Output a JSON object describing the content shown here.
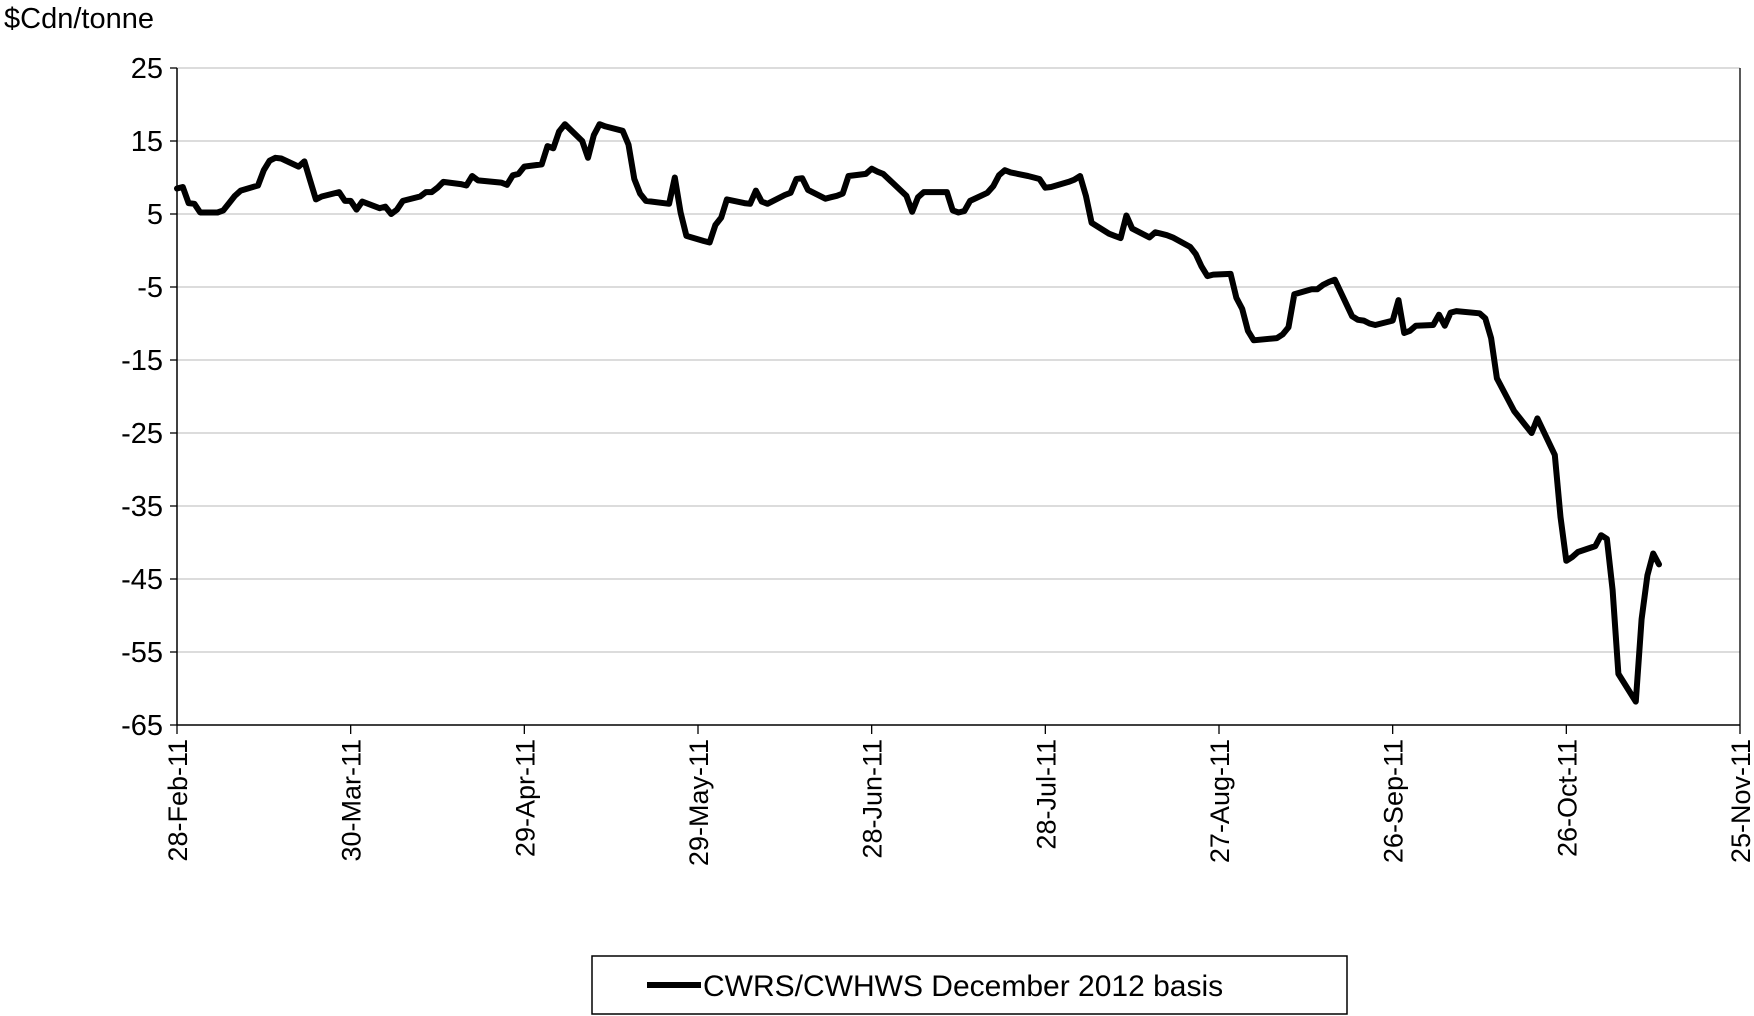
{
  "chart_data": {
    "type": "line",
    "title": "",
    "ylabel": "$Cdn/tonne",
    "xlabel": "",
    "ylim": [
      -65,
      25
    ],
    "yticks": [
      25,
      15,
      5,
      -5,
      -15,
      -25,
      -35,
      -45,
      -55,
      -65
    ],
    "x_start": "28-Feb-11",
    "x_end": "25-Nov-11",
    "xticks": [
      "28-Feb-11",
      "30-Mar-11",
      "29-Apr-11",
      "29-May-11",
      "28-Jun-11",
      "28-Jul-11",
      "27-Aug-11",
      "26-Sep-11",
      "26-Oct-11",
      "25-Nov-11"
    ],
    "grid": "horizontal",
    "legend_position": "bottom",
    "series": [
      {
        "name": "CWRS/CWHWS December 2012 basis",
        "color": "#000000",
        "points": [
          [
            "28-Feb-11",
            8.5
          ],
          [
            "01-Mar-11",
            8.7
          ],
          [
            "02-Mar-11",
            6.5
          ],
          [
            "03-Mar-11",
            6.4
          ],
          [
            "04-Mar-11",
            5.2
          ],
          [
            "07-Mar-11",
            5.2
          ],
          [
            "08-Mar-11",
            5.5
          ],
          [
            "09-Mar-11",
            6.5
          ],
          [
            "10-Mar-11",
            7.5
          ],
          [
            "11-Mar-11",
            8.2
          ],
          [
            "14-Mar-11",
            8.9
          ],
          [
            "15-Mar-11",
            11.0
          ],
          [
            "16-Mar-11",
            12.3
          ],
          [
            "17-Mar-11",
            12.7
          ],
          [
            "18-Mar-11",
            12.6
          ],
          [
            "21-Mar-11",
            11.5
          ],
          [
            "22-Mar-11",
            12.2
          ],
          [
            "23-Mar-11",
            9.6
          ],
          [
            "24-Mar-11",
            7.0
          ],
          [
            "25-Mar-11",
            7.4
          ],
          [
            "28-Mar-11",
            8.0
          ],
          [
            "29-Mar-11",
            6.8
          ],
          [
            "30-Mar-11",
            6.8
          ],
          [
            "31-Mar-11",
            5.6
          ],
          [
            "01-Apr-11",
            6.7
          ],
          [
            "04-Apr-11",
            5.8
          ],
          [
            "05-Apr-11",
            6.0
          ],
          [
            "06-Apr-11",
            5.0
          ],
          [
            "07-Apr-11",
            5.6
          ],
          [
            "08-Apr-11",
            6.8
          ],
          [
            "11-Apr-11",
            7.4
          ],
          [
            "12-Apr-11",
            8.0
          ],
          [
            "13-Apr-11",
            8.0
          ],
          [
            "14-Apr-11",
            8.6
          ],
          [
            "15-Apr-11",
            9.4
          ],
          [
            "18-Apr-11",
            9.1
          ],
          [
            "19-Apr-11",
            8.9
          ],
          [
            "20-Apr-11",
            10.2
          ],
          [
            "21-Apr-11",
            9.6
          ],
          [
            "25-Apr-11",
            9.3
          ],
          [
            "26-Apr-11",
            9.0
          ],
          [
            "27-Apr-11",
            10.3
          ],
          [
            "28-Apr-11",
            10.5
          ],
          [
            "29-Apr-11",
            11.5
          ],
          [
            "02-May-11",
            11.8
          ],
          [
            "03-May-11",
            14.3
          ],
          [
            "04-May-11",
            14.0
          ],
          [
            "05-May-11",
            16.3
          ],
          [
            "06-May-11",
            17.3
          ],
          [
            "09-May-11",
            15.0
          ],
          [
            "10-May-11",
            12.7
          ],
          [
            "11-May-11",
            15.8
          ],
          [
            "12-May-11",
            17.3
          ],
          [
            "13-May-11",
            17.0
          ],
          [
            "16-May-11",
            16.4
          ],
          [
            "17-May-11",
            14.5
          ],
          [
            "18-May-11",
            9.8
          ],
          [
            "19-May-11",
            7.8
          ],
          [
            "20-May-11",
            6.8
          ],
          [
            "24-May-11",
            6.4
          ],
          [
            "25-May-11",
            10.0
          ],
          [
            "26-May-11",
            5.2
          ],
          [
            "27-May-11",
            2.0
          ],
          [
            "30-May-11",
            1.3
          ],
          [
            "31-May-11",
            1.1
          ],
          [
            "01-Jun-11",
            3.5
          ],
          [
            "02-Jun-11",
            4.5
          ],
          [
            "03-Jun-11",
            7.0
          ],
          [
            "06-Jun-11",
            6.5
          ],
          [
            "07-Jun-11",
            6.4
          ],
          [
            "08-Jun-11",
            8.2
          ],
          [
            "09-Jun-11",
            6.7
          ],
          [
            "10-Jun-11",
            6.4
          ],
          [
            "13-Jun-11",
            7.6
          ],
          [
            "14-Jun-11",
            7.9
          ],
          [
            "15-Jun-11",
            9.8
          ],
          [
            "16-Jun-11",
            9.9
          ],
          [
            "17-Jun-11",
            8.3
          ],
          [
            "20-Jun-11",
            7.1
          ],
          [
            "21-Jun-11",
            7.3
          ],
          [
            "22-Jun-11",
            7.5
          ],
          [
            "23-Jun-11",
            7.8
          ],
          [
            "24-Jun-11",
            10.2
          ],
          [
            "27-Jun-11",
            10.5
          ],
          [
            "28-Jun-11",
            11.2
          ],
          [
            "29-Jun-11",
            10.8
          ],
          [
            "30-Jun-11",
            10.5
          ],
          [
            "04-Jul-11",
            7.5
          ],
          [
            "05-Jul-11",
            5.3
          ],
          [
            "06-Jul-11",
            7.3
          ],
          [
            "07-Jul-11",
            8.0
          ],
          [
            "08-Jul-11",
            8.0
          ],
          [
            "11-Jul-11",
            8.0
          ],
          [
            "12-Jul-11",
            5.5
          ],
          [
            "13-Jul-11",
            5.2
          ],
          [
            "14-Jul-11",
            5.4
          ],
          [
            "15-Jul-11",
            6.8
          ],
          [
            "18-Jul-11",
            7.9
          ],
          [
            "19-Jul-11",
            8.8
          ],
          [
            "20-Jul-11",
            10.3
          ],
          [
            "21-Jul-11",
            11.0
          ],
          [
            "22-Jul-11",
            10.7
          ],
          [
            "25-Jul-11",
            10.2
          ],
          [
            "26-Jul-11",
            10.0
          ],
          [
            "27-Jul-11",
            9.8
          ],
          [
            "28-Jul-11",
            8.6
          ],
          [
            "29-Jul-11",
            8.7
          ],
          [
            "01-Aug-11",
            9.4
          ],
          [
            "02-Aug-11",
            9.7
          ],
          [
            "03-Aug-11",
            10.2
          ],
          [
            "04-Aug-11",
            7.5
          ],
          [
            "05-Aug-11",
            3.8
          ],
          [
            "08-Aug-11",
            2.3
          ],
          [
            "09-Aug-11",
            2.0
          ],
          [
            "10-Aug-11",
            1.7
          ],
          [
            "11-Aug-11",
            4.8
          ],
          [
            "12-Aug-11",
            3.0
          ],
          [
            "15-Aug-11",
            1.8
          ],
          [
            "16-Aug-11",
            2.5
          ],
          [
            "17-Aug-11",
            2.3
          ],
          [
            "18-Aug-11",
            2.1
          ],
          [
            "19-Aug-11",
            1.8
          ],
          [
            "22-Aug-11",
            0.5
          ],
          [
            "23-Aug-11",
            -0.5
          ],
          [
            "24-Aug-11",
            -2.2
          ],
          [
            "25-Aug-11",
            -3.5
          ],
          [
            "26-Aug-11",
            -3.3
          ],
          [
            "29-Aug-11",
            -3.2
          ],
          [
            "30-Aug-11",
            -6.5
          ],
          [
            "31-Aug-11",
            -8.0
          ],
          [
            "01-Sep-11",
            -11.0
          ],
          [
            "02-Sep-11",
            -12.3
          ],
          [
            "06-Sep-11",
            -12.0
          ],
          [
            "07-Sep-11",
            -11.5
          ],
          [
            "08-Sep-11",
            -10.5
          ],
          [
            "09-Sep-11",
            -6.0
          ],
          [
            "12-Sep-11",
            -5.3
          ],
          [
            "13-Sep-11",
            -5.3
          ],
          [
            "14-Sep-11",
            -4.7
          ],
          [
            "15-Sep-11",
            -4.3
          ],
          [
            "16-Sep-11",
            -4.0
          ],
          [
            "19-Sep-11",
            -9.0
          ],
          [
            "20-Sep-11",
            -9.5
          ],
          [
            "21-Sep-11",
            -9.6
          ],
          [
            "22-Sep-11",
            -10.0
          ],
          [
            "23-Sep-11",
            -10.2
          ],
          [
            "26-Sep-11",
            -9.6
          ],
          [
            "27-Sep-11",
            -6.8
          ],
          [
            "28-Sep-11",
            -11.3
          ],
          [
            "29-Sep-11",
            -11.0
          ],
          [
            "30-Sep-11",
            -10.3
          ],
          [
            "03-Oct-11",
            -10.2
          ],
          [
            "04-Oct-11",
            -8.8
          ],
          [
            "05-Oct-11",
            -10.3
          ],
          [
            "06-Oct-11",
            -8.5
          ],
          [
            "07-Oct-11",
            -8.3
          ],
          [
            "11-Oct-11",
            -8.6
          ],
          [
            "12-Oct-11",
            -9.3
          ],
          [
            "13-Oct-11",
            -12.0
          ],
          [
            "14-Oct-11",
            -17.5
          ],
          [
            "17-Oct-11",
            -22.0
          ],
          [
            "18-Oct-11",
            -23.0
          ],
          [
            "19-Oct-11",
            -24.0
          ],
          [
            "20-Oct-11",
            -25.0
          ],
          [
            "21-Oct-11",
            -23.0
          ],
          [
            "24-Oct-11",
            -28.0
          ],
          [
            "25-Oct-11",
            -36.5
          ],
          [
            "26-Oct-11",
            -42.5
          ],
          [
            "27-Oct-11",
            -42.0
          ],
          [
            "28-Oct-11",
            -41.3
          ],
          [
            "31-Oct-11",
            -40.5
          ],
          [
            "01-Nov-11",
            -39.0
          ],
          [
            "02-Nov-11",
            -39.5
          ],
          [
            "03-Nov-11",
            -46.5
          ],
          [
            "04-Nov-11",
            -58.0
          ],
          [
            "07-Nov-11",
            -61.8
          ],
          [
            "08-Nov-11",
            -50.5
          ],
          [
            "09-Nov-11",
            -44.5
          ],
          [
            "10-Nov-11",
            -41.5
          ],
          [
            "11-Nov-11",
            -43.0
          ]
        ]
      }
    ]
  }
}
